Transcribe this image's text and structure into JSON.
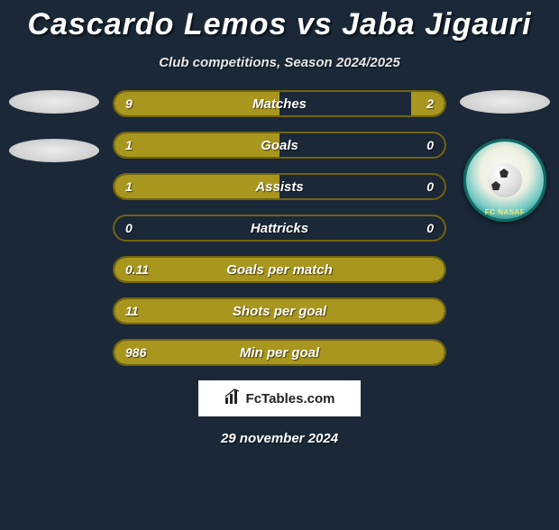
{
  "title": "Cascardo Lemos vs Jaba Jigauri",
  "subtitle": "Club competitions, Season 2024/2025",
  "colors": {
    "background": "#1a2838",
    "bar_fill": "#a9961e",
    "bar_border": "#72630f",
    "text": "#ffffff"
  },
  "bars": [
    {
      "label": "Matches",
      "left": "9",
      "right": "2",
      "left_pct": 50,
      "right_pct": 10
    },
    {
      "label": "Goals",
      "left": "1",
      "right": "0",
      "left_pct": 50,
      "right_pct": 0
    },
    {
      "label": "Assists",
      "left": "1",
      "right": "0",
      "left_pct": 50,
      "right_pct": 0
    },
    {
      "label": "Hattricks",
      "left": "0",
      "right": "0",
      "left_pct": 0,
      "right_pct": 0
    },
    {
      "label": "Goals per match",
      "left": "0.11",
      "right": "",
      "left_pct": 100,
      "right_pct": 0,
      "full": true
    },
    {
      "label": "Shots per goal",
      "left": "11",
      "right": "",
      "left_pct": 100,
      "right_pct": 0,
      "full": true
    },
    {
      "label": "Min per goal",
      "left": "986",
      "right": "",
      "left_pct": 100,
      "right_pct": 0,
      "full": true
    }
  ],
  "brand": "FcTables.com",
  "date": "29 november 2024",
  "right_club": {
    "ring_text": "FC NASAF"
  }
}
